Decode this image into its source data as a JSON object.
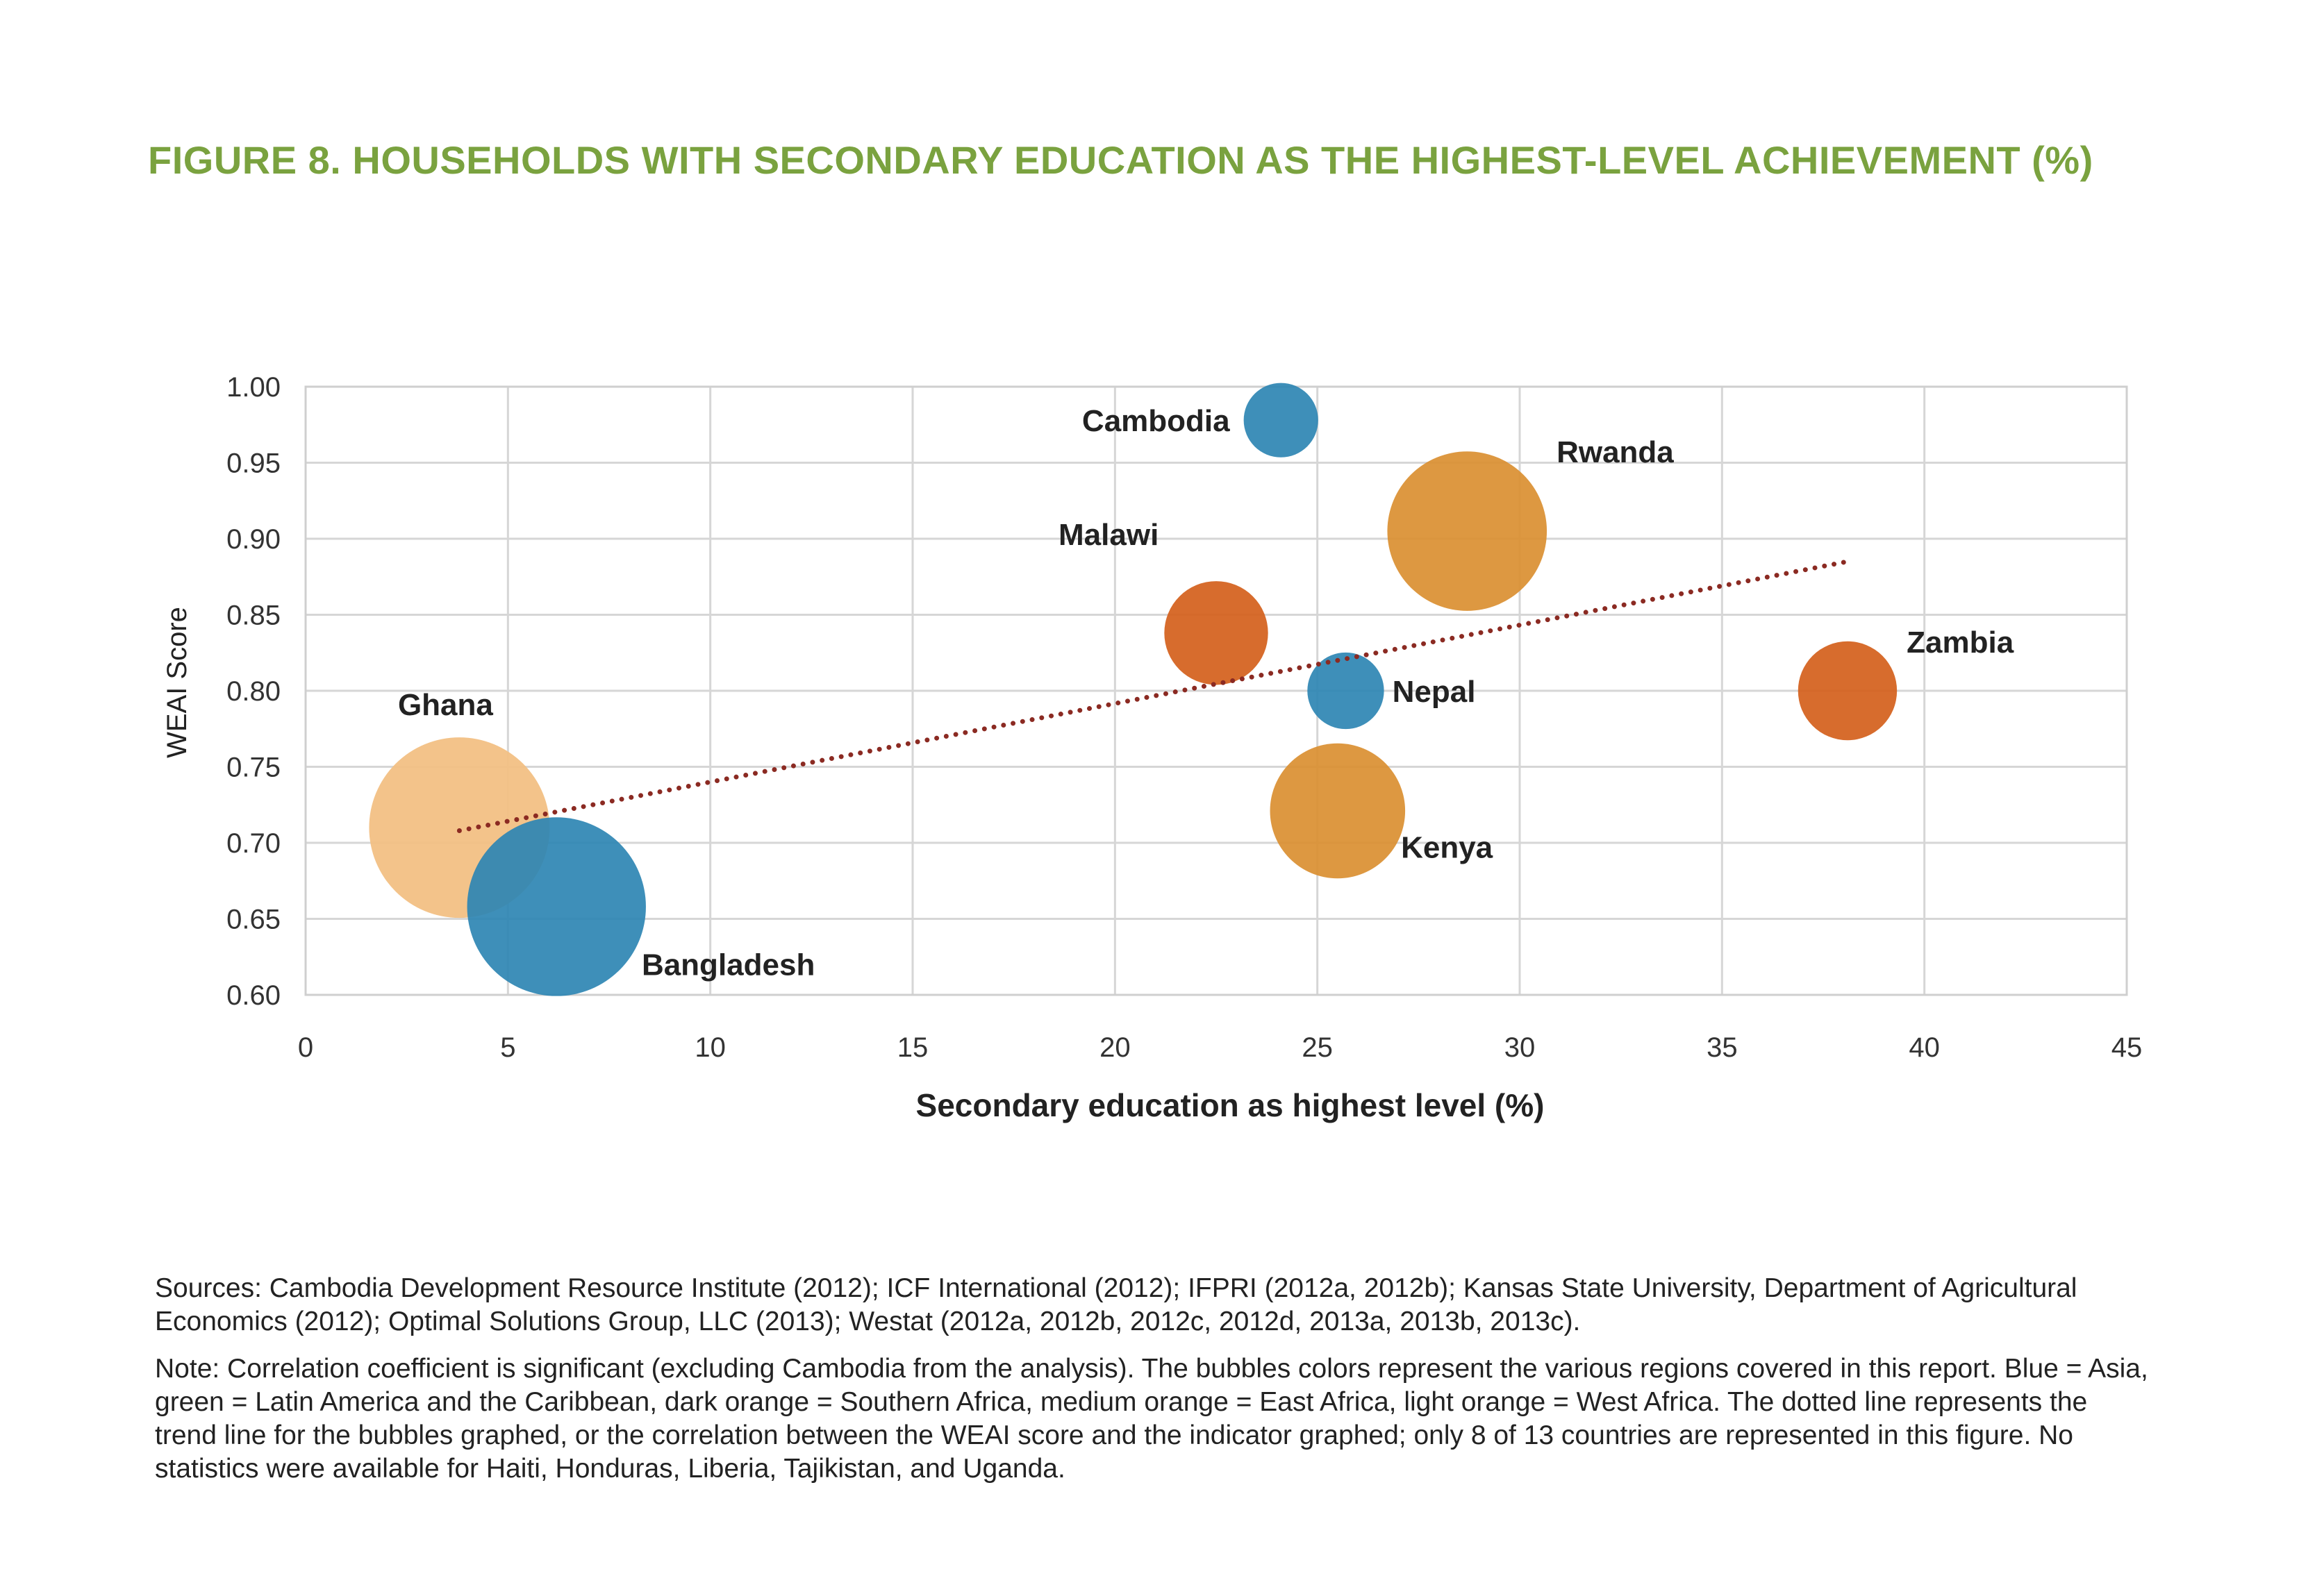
{
  "figure_title": "FIGURE 8. HOUSEHOLDS WITH SECONDARY EDUCATION AS THE HIGHEST-LEVEL ACHIEVEMENT (%)",
  "sources": "Sources: Cambodia Development Resource Institute (2012); ICF International (2012); IFPRI (2012a, 2012b); Kansas State University, Department of Agricultural Economics (2012); Optimal Solutions Group, LLC (2013); Westat (2012a, 2012b, 2012c, 2012d, 2013a, 2013b, 2013c).",
  "note": "Note: Correlation coefficient is significant (excluding Cambodia from the analysis). The bubbles colors represent the various regions covered in this report. Blue = Asia, green = Latin America and the Caribbean, dark orange = Southern Africa, medium orange = East Africa, light orange = West Africa. The dotted line represents the trend line for the bubbles graphed, or the correlation between the WEAI score and the indicator graphed; only 8 of 13 countries are represented in this figure. No statistics were available for Haiti, Honduras, Liberia, Tajikistan, and Uganda.",
  "colors": {
    "title": "#7aa23f",
    "asia": "#2e86b3",
    "southern_africa": "#d45f1b",
    "east_africa": "#da8f31",
    "west_africa": "#f2c084",
    "trend": "#8b2a22",
    "grid": "#d6d6d6",
    "text": "#222222"
  },
  "chart_data": {
    "type": "scatter",
    "subtype": "bubble",
    "title": "",
    "xlabel": "Secondary education as highest level (%)",
    "ylabel": "WEAI Score",
    "xlim": [
      0,
      45
    ],
    "ylim": [
      0.6,
      1.0
    ],
    "x_ticks": [
      "0",
      "5",
      "10",
      "15",
      "20",
      "25",
      "30",
      "35",
      "40",
      "45"
    ],
    "y_ticks": [
      "0.60",
      "0.65",
      "0.70",
      "0.75",
      "0.80",
      "0.85",
      "0.90",
      "0.95",
      "1.00"
    ],
    "grid": true,
    "points": [
      {
        "label": "Ghana",
        "x": 3.8,
        "y": 0.71,
        "size": 1.0,
        "region": "west_africa",
        "label_side": "above"
      },
      {
        "label": "Bangladesh",
        "x": 6.2,
        "y": 0.658,
        "size": 0.98,
        "region": "asia",
        "label_side": "right-below"
      },
      {
        "label": "Cambodia",
        "x": 24.1,
        "y": 0.978,
        "size": 0.17,
        "region": "asia",
        "label_side": "left"
      },
      {
        "label": "Rwanda",
        "x": 28.7,
        "y": 0.905,
        "size": 0.78,
        "region": "east_africa",
        "label_side": "right-above"
      },
      {
        "label": "Malawi",
        "x": 22.5,
        "y": 0.838,
        "size": 0.33,
        "region": "southern_africa",
        "label_side": "left-above"
      },
      {
        "label": "Nepal",
        "x": 25.7,
        "y": 0.8,
        "size": 0.18,
        "region": "asia",
        "label_side": "right"
      },
      {
        "label": "Kenya",
        "x": 25.5,
        "y": 0.721,
        "size": 0.56,
        "region": "east_africa",
        "label_side": "right-below"
      },
      {
        "label": "Zambia",
        "x": 38.1,
        "y": 0.8,
        "size": 0.3,
        "region": "southern_africa",
        "label_side": "right-above"
      }
    ],
    "trend_line": {
      "x": [
        3.8,
        38.1
      ],
      "y": [
        0.708,
        0.885
      ],
      "style": "dotted"
    }
  }
}
